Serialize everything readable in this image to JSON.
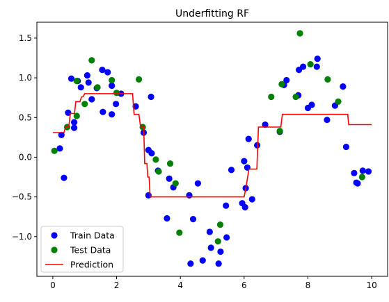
{
  "chart_data": {
    "type": "scatter",
    "title": "Underfitting RF",
    "xlabel": "",
    "ylabel": "",
    "xlim": [
      -0.5,
      10.5
    ],
    "ylim": [
      -1.5,
      1.7
    ],
    "x_ticks": [
      0,
      2,
      4,
      6,
      8,
      10
    ],
    "x_tick_labels": [
      "0",
      "2",
      "4",
      "6",
      "8",
      "10"
    ],
    "y_ticks": [
      -1.0,
      -0.5,
      0.0,
      0.5,
      1.0,
      1.5
    ],
    "y_tick_labels": [
      "−1.0",
      "−0.5",
      "0.0",
      "0.5",
      "1.0",
      "1.5"
    ],
    "grid": false,
    "legend_position": "lower-left",
    "series": [
      {
        "name": "Train Data",
        "kind": "scatter",
        "color": "#0000ff",
        "points": [
          [
            0.22,
            0.11
          ],
          [
            0.27,
            0.28
          ],
          [
            0.35,
            -0.26
          ],
          [
            0.48,
            0.56
          ],
          [
            0.58,
            0.99
          ],
          [
            0.67,
            0.37
          ],
          [
            0.67,
            0.44
          ],
          [
            0.78,
            0.96
          ],
          [
            0.88,
            0.88
          ],
          [
            1.08,
            1.03
          ],
          [
            1.12,
            0.94
          ],
          [
            1.22,
            0.73
          ],
          [
            1.38,
            0.87
          ],
          [
            1.55,
            1.1
          ],
          [
            1.57,
            0.57
          ],
          [
            1.72,
            1.07
          ],
          [
            1.85,
            0.9
          ],
          [
            1.85,
            0.54
          ],
          [
            1.98,
            0.67
          ],
          [
            2.14,
            0.8
          ],
          [
            2.6,
            0.64
          ],
          [
            2.85,
            0.31
          ],
          [
            3.0,
            -0.48
          ],
          [
            3.0,
            0.09
          ],
          [
            3.08,
            0.76
          ],
          [
            3.1,
            0.05
          ],
          [
            3.3,
            -0.17
          ],
          [
            3.58,
            -0.77
          ],
          [
            3.65,
            -0.27
          ],
          [
            3.78,
            -0.38
          ],
          [
            4.28,
            -0.48
          ],
          [
            4.32,
            -1.34
          ],
          [
            4.4,
            -0.78
          ],
          [
            4.55,
            -0.33
          ],
          [
            4.7,
            -1.3
          ],
          [
            4.92,
            -0.94
          ],
          [
            4.96,
            -1.14
          ],
          [
            5.2,
            -1.34
          ],
          [
            5.26,
            -1.19
          ],
          [
            5.43,
            -0.61
          ],
          [
            5.45,
            -1.01
          ],
          [
            5.6,
            -0.16
          ],
          [
            5.94,
            -0.58
          ],
          [
            6.0,
            -0.05
          ],
          [
            6.03,
            -0.63
          ],
          [
            6.05,
            -0.39
          ],
          [
            6.1,
            -0.13
          ],
          [
            6.14,
            0.23
          ],
          [
            6.25,
            -0.53
          ],
          [
            6.41,
            0.15
          ],
          [
            6.66,
            0.41
          ],
          [
            7.12,
            0.32
          ],
          [
            7.25,
            0.91
          ],
          [
            7.33,
            0.97
          ],
          [
            7.7,
            0.78
          ],
          [
            7.72,
            1.1
          ],
          [
            7.85,
            1.14
          ],
          [
            8.0,
            0.62
          ],
          [
            8.12,
            0.66
          ],
          [
            8.28,
            1.14
          ],
          [
            8.3,
            1.24
          ],
          [
            8.6,
            0.47
          ],
          [
            8.85,
            0.65
          ],
          [
            9.1,
            0.89
          ],
          [
            9.2,
            0.13
          ],
          [
            9.45,
            -0.2
          ],
          [
            9.52,
            -0.32
          ],
          [
            9.56,
            -0.33
          ],
          [
            9.72,
            -0.17
          ],
          [
            9.9,
            -0.18
          ]
        ]
      },
      {
        "name": "Test Data",
        "kind": "scatter",
        "color": "#008000",
        "points": [
          [
            0.05,
            0.08
          ],
          [
            0.45,
            0.38
          ],
          [
            0.75,
            0.52
          ],
          [
            0.75,
            0.96
          ],
          [
            1.0,
            0.67
          ],
          [
            1.22,
            1.22
          ],
          [
            1.4,
            0.88
          ],
          [
            1.85,
            0.97
          ],
          [
            2.0,
            0.81
          ],
          [
            2.7,
            0.98
          ],
          [
            2.82,
            0.38
          ],
          [
            3.23,
            -0.03
          ],
          [
            3.32,
            -0.18
          ],
          [
            3.68,
            -0.08
          ],
          [
            3.85,
            -0.33
          ],
          [
            3.97,
            -0.95
          ],
          [
            5.18,
            -1.06
          ],
          [
            5.25,
            -0.85
          ],
          [
            6.85,
            0.76
          ],
          [
            7.12,
            0.33
          ],
          [
            7.18,
            0.92
          ],
          [
            7.62,
            0.76
          ],
          [
            7.75,
            1.56
          ],
          [
            8.08,
            1.17
          ],
          [
            8.62,
            0.98
          ],
          [
            8.95,
            0.7
          ],
          [
            9.7,
            -0.25
          ]
        ]
      },
      {
        "name": "Prediction",
        "kind": "line",
        "color": "#ff0000",
        "points": [
          [
            0.0,
            0.31
          ],
          [
            0.35,
            0.31
          ],
          [
            0.4,
            0.38
          ],
          [
            0.5,
            0.38
          ],
          [
            0.55,
            0.55
          ],
          [
            0.68,
            0.55
          ],
          [
            0.72,
            0.7
          ],
          [
            0.85,
            0.7
          ],
          [
            0.9,
            0.76
          ],
          [
            0.95,
            0.76
          ],
          [
            1.0,
            0.8
          ],
          [
            2.5,
            0.8
          ],
          [
            2.55,
            0.54
          ],
          [
            2.7,
            0.54
          ],
          [
            2.75,
            0.39
          ],
          [
            2.85,
            0.39
          ],
          [
            2.88,
            -0.08
          ],
          [
            2.95,
            -0.08
          ],
          [
            2.98,
            -0.25
          ],
          [
            3.02,
            -0.25
          ],
          [
            3.05,
            -0.5
          ],
          [
            6.0,
            -0.5
          ],
          [
            6.05,
            -0.4
          ],
          [
            6.15,
            -0.15
          ],
          [
            6.4,
            -0.15
          ],
          [
            6.45,
            0.38
          ],
          [
            7.15,
            0.38
          ],
          [
            7.2,
            0.54
          ],
          [
            9.25,
            0.54
          ],
          [
            9.28,
            0.41
          ],
          [
            10.0,
            0.41
          ]
        ]
      }
    ]
  }
}
